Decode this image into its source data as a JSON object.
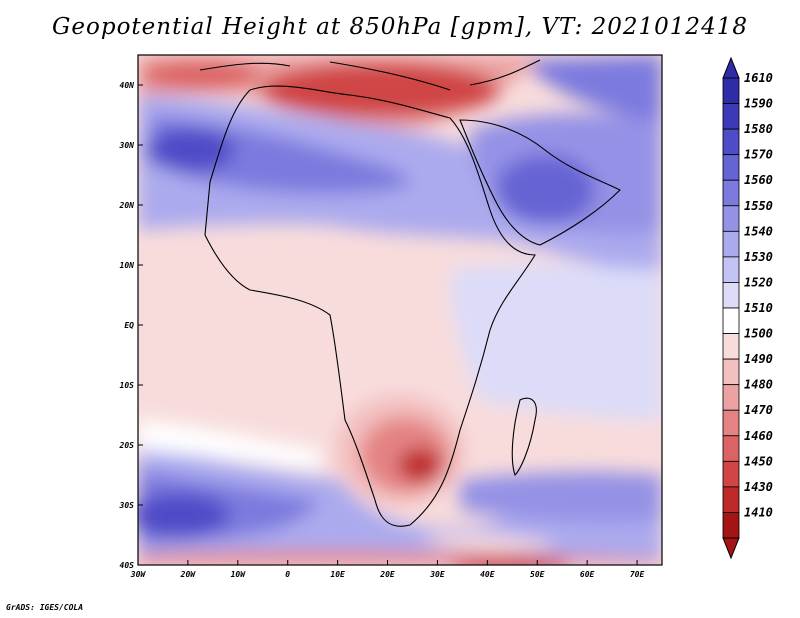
{
  "title": "Geopotential Height at 850hPa [gpm], VT: 2021012418",
  "credit": "GrADS: IGES/COLA",
  "map": {
    "lon_range": [
      -30,
      75
    ],
    "lat_range": [
      -40,
      45
    ],
    "x_ticks": [
      "30W",
      "20W",
      "10W",
      "0",
      "10E",
      "20E",
      "30E",
      "40E",
      "50E",
      "60E",
      "70E"
    ],
    "y_ticks": [
      "40N",
      "30N",
      "20N",
      "10N",
      "EQ",
      "10S",
      "20S",
      "30S",
      "40S"
    ]
  },
  "colorbar": {
    "labels": [
      "1610",
      "1590",
      "1580",
      "1570",
      "1560",
      "1550",
      "1540",
      "1530",
      "1520",
      "1510",
      "1500",
      "1490",
      "1480",
      "1470",
      "1460",
      "1450",
      "1430",
      "1410"
    ],
    "colors": [
      "#2f2ca8",
      "#3d3ab8",
      "#4f4cc8",
      "#6663d4",
      "#7c7ade",
      "#9492e6",
      "#acaaee",
      "#c4c4f4",
      "#dcdcf9",
      "#ffffff",
      "#f8dcdc",
      "#f3c0c0",
      "#eca2a2",
      "#e48383",
      "#dc6363",
      "#d04545",
      "#be2a2a",
      "#a51414"
    ]
  }
}
